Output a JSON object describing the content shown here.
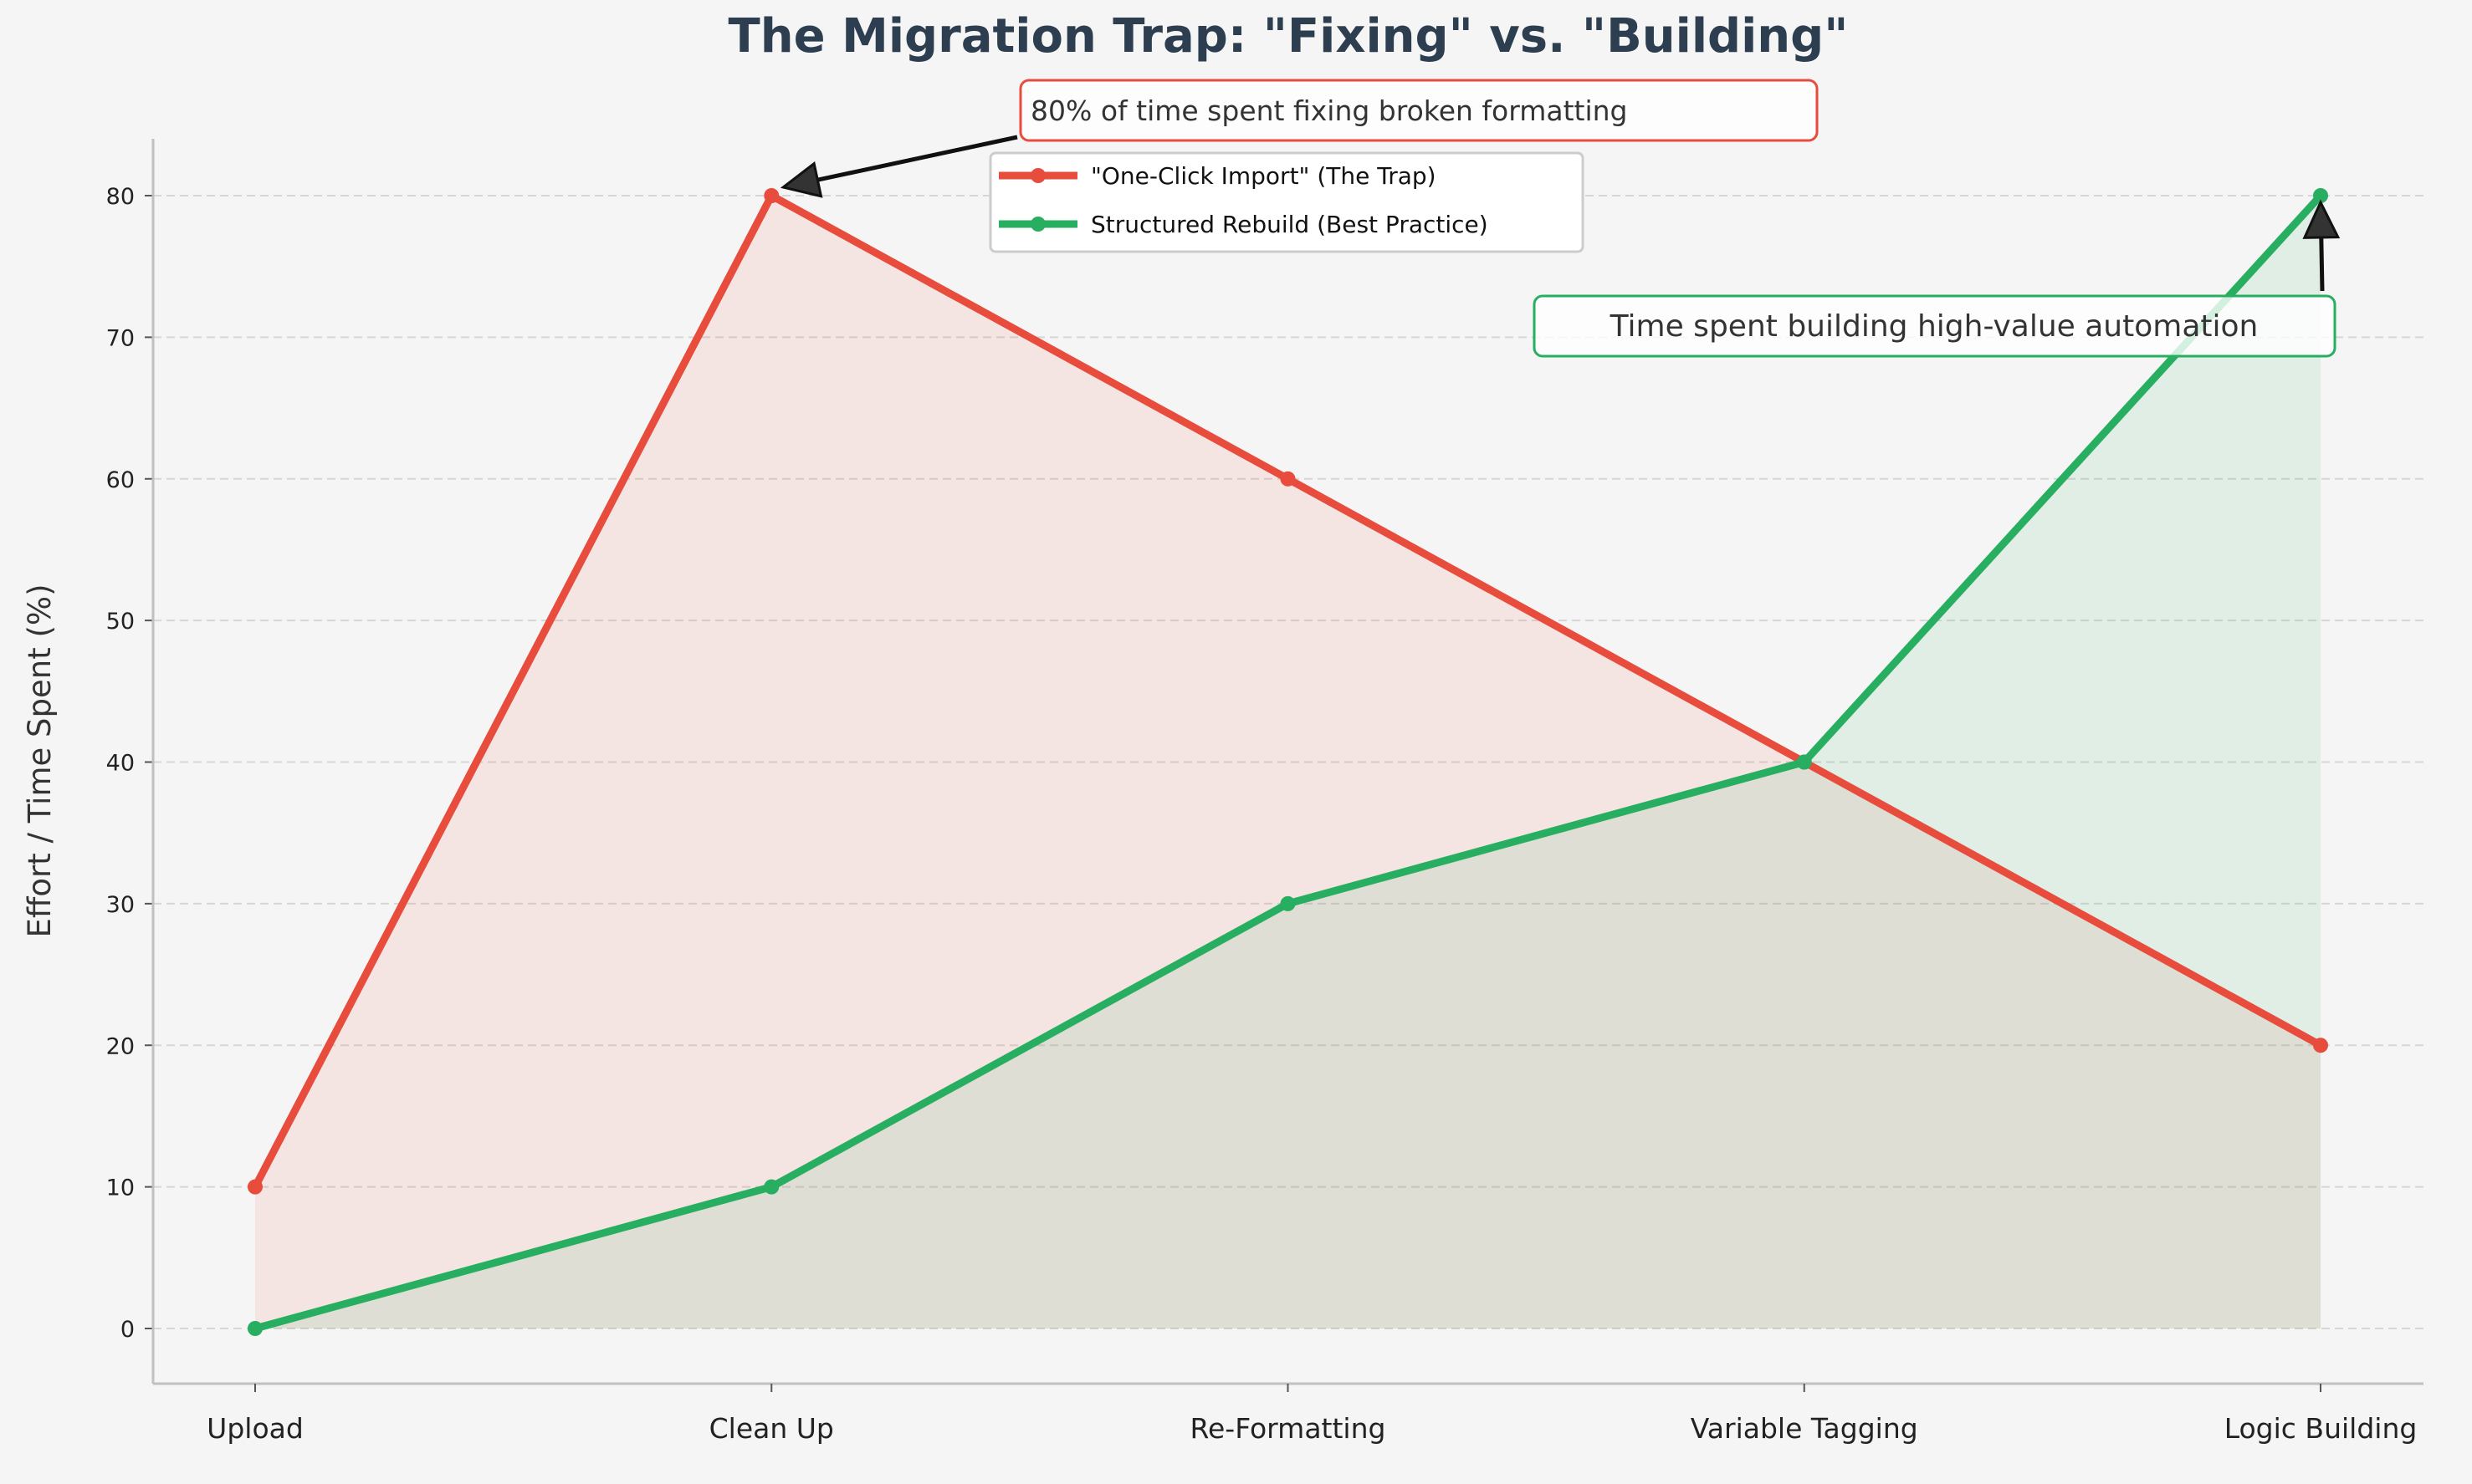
{
  "chart_data": {
    "type": "line",
    "title": "The Migration Trap: \"Fixing\" vs. \"Building\"",
    "xlabel": "",
    "ylabel": "Effort / Time Spent (%)",
    "categories": [
      "Upload",
      "Clean Up",
      "Re-Formatting",
      "Variable Tagging",
      "Logic Building"
    ],
    "ylim": [
      -4,
      84
    ],
    "yticks": [
      0,
      10,
      20,
      30,
      40,
      50,
      60,
      70,
      80
    ],
    "grid": "horizontal dashed",
    "legend_placement": "upper center",
    "filled_area": true,
    "series": [
      {
        "name": "\"One-Click Import\" (The Trap)",
        "values": [
          10,
          80,
          60,
          40,
          20
        ],
        "color": "#e74c3c"
      },
      {
        "name": "Structured Rebuild (Best Practice)",
        "values": [
          0,
          10,
          30,
          40,
          80
        ],
        "color": "#27ae60"
      }
    ],
    "annotations": [
      {
        "text": "80% of time spent fixing broken formatting",
        "points_to": {
          "category": "Clean Up",
          "value": 80
        },
        "border_color": "#e74c3c"
      },
      {
        "text": "Time spent building high-value automation",
        "points_to": {
          "category": "Logic Building",
          "value": 80
        },
        "border_color": "#27ae60"
      }
    ]
  },
  "colors": {
    "background": "#f5f5f5",
    "title": "#2c3e50",
    "grid": "#d6d6d6",
    "axis": "#c0c0c0"
  }
}
